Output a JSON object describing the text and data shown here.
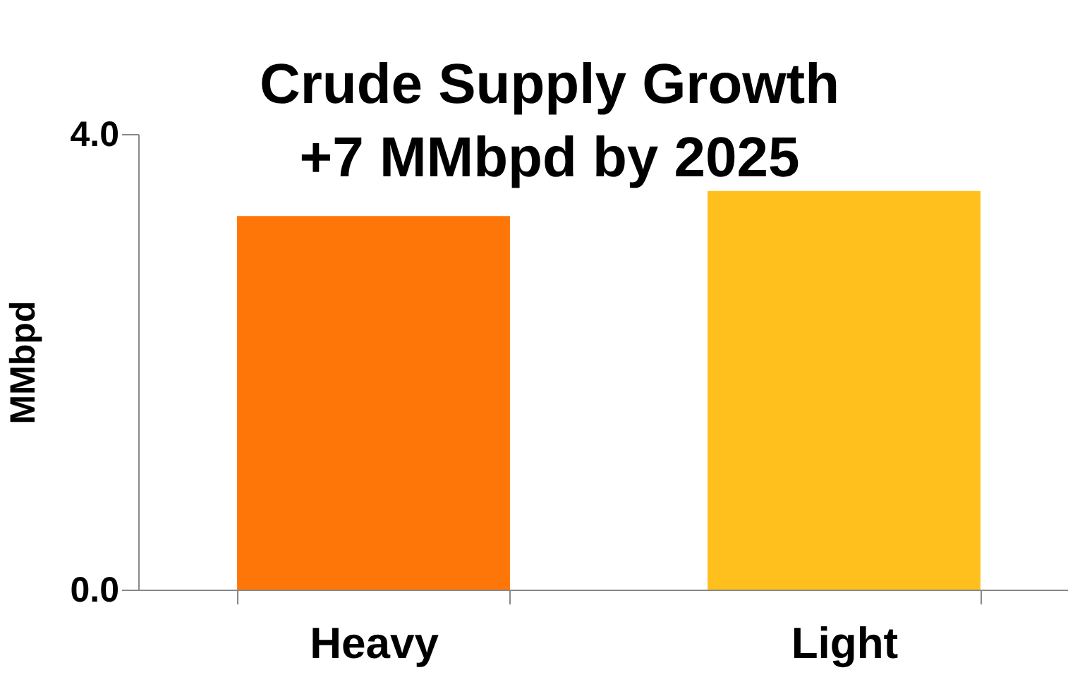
{
  "chart_data": {
    "type": "bar",
    "title": "Crude Supply Growth\n+7 MMbpd by 2025",
    "ylabel": "MMbpd",
    "categories": [
      "Heavy",
      "Light"
    ],
    "values": [
      3.28,
      3.5
    ],
    "colors": [
      "#ff7608",
      "#ffc01e"
    ],
    "ylim": [
      0,
      4
    ],
    "yticks": [
      {
        "value": 0,
        "label": "0.0"
      },
      {
        "value": 4,
        "label": "4.0"
      }
    ],
    "grid": false,
    "legend": false
  }
}
